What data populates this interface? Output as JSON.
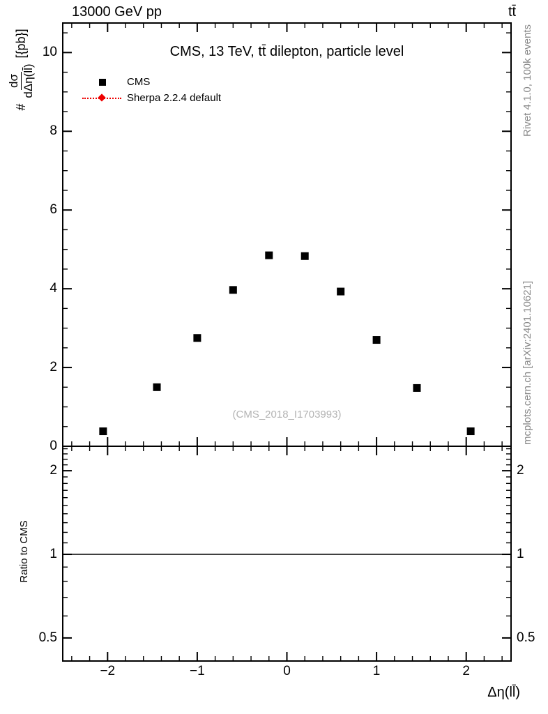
{
  "header": {
    "collision": "13000 GeV pp",
    "process": "tt̄"
  },
  "main_panel": {
    "title": "CMS, 13 TeV, tt̄ dilepton, particle level",
    "watermark": "(CMS_2018_I1703993)",
    "ylabel": {
      "prefix": "#",
      "numerator": "dσ",
      "denominator": "dΔη(ll̄)",
      "suffix": "[{pb}]"
    },
    "legend": [
      {
        "label": "CMS",
        "marker": "filled-square",
        "color": "#000000"
      },
      {
        "label": "Sherpa 2.2.4 default",
        "marker": "diamond-with-dotted-line",
        "color": "#ee0000"
      }
    ]
  },
  "ratio_panel": {
    "ylabel": "Ratio to CMS"
  },
  "side_notes": {
    "top_right": "Rivet 4.1.0, 100k events",
    "bottom_right": "mcplots.cern.ch [arXiv:2401.10621]"
  },
  "xaxis_label": "Δη(ll̄)",
  "chart_data": {
    "type": "scatter",
    "title": "CMS, 13 TeV, tt̄ dilepton, particle level",
    "xlabel": "Δη(ll̄)",
    "ylabel": "# dσ/dΔη(ll̄) [{pb}]",
    "xlim": [
      -2.5,
      2.5
    ],
    "ylim": [
      0,
      10.75
    ],
    "x_major_ticks": [
      -2,
      -1,
      0,
      1,
      2
    ],
    "y_major_ticks": [
      0,
      2,
      4,
      6,
      8,
      10
    ],
    "grid": false,
    "legend_position": "top-left",
    "series": [
      {
        "name": "CMS",
        "marker": "square",
        "color": "#000000",
        "x": [
          -2.05,
          -1.45,
          -1.0,
          -0.6,
          -0.2,
          0.2,
          0.6,
          1.0,
          1.45,
          2.05
        ],
        "y": [
          0.38,
          1.5,
          2.75,
          3.97,
          4.85,
          4.83,
          3.93,
          2.7,
          1.48,
          0.38
        ]
      },
      {
        "name": "Sherpa 2.2.4 default",
        "marker": "diamond",
        "color": "#ee0000",
        "x": [],
        "y": [],
        "note": "legend entry only; no points visible in plot"
      }
    ],
    "ratio": {
      "ylabel": "Ratio to CMS",
      "yscale": "log",
      "ylim": [
        0.413,
        2.45
      ],
      "yticks": [
        0.5,
        1,
        2
      ],
      "reference_line": 1.0
    }
  }
}
